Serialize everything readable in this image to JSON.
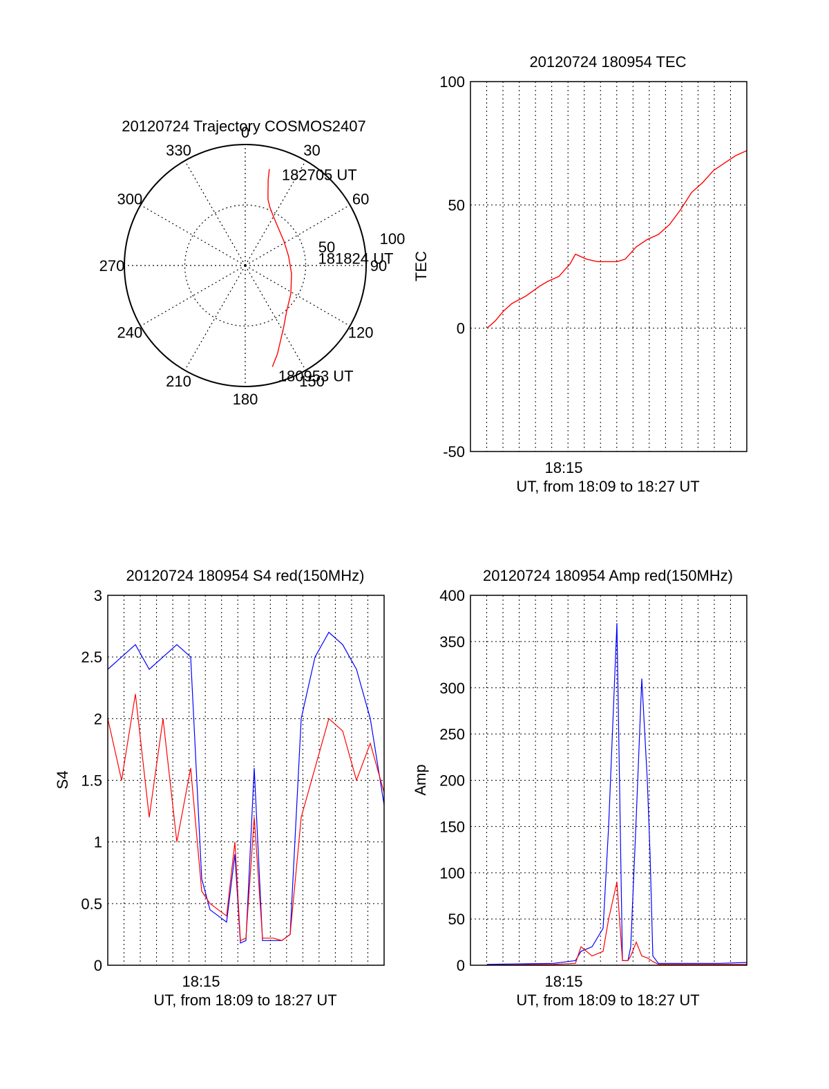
{
  "colors": {
    "red": "#ff0000",
    "blue": "#0000ff",
    "axis": "#000000",
    "grid": "#000000"
  },
  "chart_data": [
    {
      "type": "polar",
      "title": "20120724 Trajectory COSMOS2407",
      "azimuth_labels": [
        "0",
        "30",
        "60",
        "90",
        "120",
        "150",
        "180",
        "210",
        "240",
        "270",
        "300",
        "330"
      ],
      "radial_labels": [
        "50",
        "100"
      ],
      "elevation_range": [
        0,
        90
      ],
      "grid": true,
      "series": [
        {
          "color": "red",
          "points": [
            [
              165,
              12
            ],
            [
              160,
              20
            ],
            [
              155,
              28
            ],
            [
              148,
              36
            ],
            [
              138,
              44
            ],
            [
              122,
              50
            ],
            [
              100,
              55
            ],
            [
              78,
              57
            ],
            [
              58,
              56
            ],
            [
              42,
              53
            ],
            [
              30,
              48
            ],
            [
              23,
              43
            ],
            [
              19,
              38
            ],
            [
              17,
              32
            ],
            [
              15,
              24
            ],
            [
              14,
              16
            ]
          ]
        }
      ],
      "annotations": [
        {
          "text": "182705 UT",
          "az": 20,
          "el": 18
        },
        {
          "text": "181824 UT",
          "az": 84,
          "el": 38
        },
        {
          "text": "180953 UT",
          "az": 165,
          "el": 5
        }
      ]
    },
    {
      "type": "line",
      "title": "20120724 180954 TEC",
      "ylabel": "TEC",
      "xlabel": "UT, from 18:09 to 18:27 UT",
      "xtick_label": "18:15",
      "ylim": [
        -50,
        100
      ],
      "yticks": [
        "100",
        "50",
        "0",
        "-50"
      ],
      "grid": true,
      "series": [
        {
          "color": "red",
          "x": [
            0.06,
            0.09,
            0.12,
            0.15,
            0.2,
            0.25,
            0.28,
            0.32,
            0.36,
            0.38,
            0.42,
            0.46,
            0.5,
            0.53,
            0.56,
            0.6,
            0.64,
            0.68,
            0.72,
            0.76,
            0.8,
            0.84,
            0.88,
            0.92,
            0.96,
            1.0
          ],
          "y": [
            0,
            3,
            7,
            10,
            13,
            17,
            19,
            21,
            26,
            30,
            28,
            27,
            27,
            27,
            28,
            33,
            36,
            38,
            42,
            48,
            55,
            59,
            64,
            67,
            70,
            72
          ]
        }
      ]
    },
    {
      "type": "line",
      "title": "20120724 180954 S4 red(150MHz)",
      "ylabel": "S4",
      "xlabel": "UT, from 18:09 to 18:27 UT",
      "xtick_label": "18:15",
      "ylim": [
        0,
        3
      ],
      "yticks": [
        "3",
        "2.5",
        "2",
        "1.5",
        "1",
        "0.5",
        "0"
      ],
      "grid": true,
      "series": [
        {
          "color": "blue",
          "x": [
            0.0,
            0.05,
            0.1,
            0.15,
            0.2,
            0.25,
            0.3,
            0.34,
            0.37,
            0.4,
            0.43,
            0.46,
            0.48,
            0.5,
            0.53,
            0.56,
            0.6,
            0.63,
            0.66,
            0.7,
            0.75,
            0.8,
            0.85,
            0.9,
            0.95,
            1.0
          ],
          "y": [
            2.4,
            2.5,
            2.6,
            2.4,
            2.5,
            2.6,
            2.5,
            0.7,
            0.45,
            0.4,
            0.35,
            0.9,
            0.18,
            0.2,
            1.6,
            0.2,
            0.2,
            0.2,
            0.25,
            2.0,
            2.5,
            2.7,
            2.6,
            2.4,
            2.0,
            1.3
          ]
        },
        {
          "color": "red",
          "x": [
            0.0,
            0.05,
            0.1,
            0.15,
            0.2,
            0.25,
            0.3,
            0.34,
            0.37,
            0.4,
            0.43,
            0.46,
            0.48,
            0.5,
            0.53,
            0.56,
            0.6,
            0.63,
            0.66,
            0.7,
            0.75,
            0.8,
            0.85,
            0.9,
            0.95,
            1.0
          ],
          "y": [
            2.0,
            1.5,
            2.2,
            1.2,
            2.0,
            1.0,
            1.6,
            0.6,
            0.5,
            0.45,
            0.4,
            1.0,
            0.2,
            0.22,
            1.2,
            0.22,
            0.22,
            0.2,
            0.25,
            1.2,
            1.6,
            2.0,
            1.9,
            1.5,
            1.8,
            1.4
          ]
        }
      ]
    },
    {
      "type": "line",
      "title": "20120724 180954 Amp red(150MHz)",
      "ylabel": "Amp",
      "xlabel": "UT, from 18:09 to 18:27 UT",
      "xtick_label": "18:15",
      "ylim": [
        0,
        400
      ],
      "yticks": [
        "400",
        "350",
        "300",
        "250",
        "200",
        "150",
        "100",
        "50",
        "0"
      ],
      "grid": true,
      "series": [
        {
          "color": "blue",
          "x": [
            0.06,
            0.3,
            0.38,
            0.4,
            0.44,
            0.48,
            0.5,
            0.53,
            0.55,
            0.57,
            0.58,
            0.6,
            0.62,
            0.64,
            0.65,
            0.66,
            0.68,
            0.7,
            0.8,
            0.9,
            1.0
          ],
          "y": [
            1,
            2,
            5,
            15,
            20,
            40,
            150,
            370,
            5,
            5,
            20,
            160,
            310,
            200,
            120,
            10,
            2,
            2,
            2,
            2,
            3
          ]
        },
        {
          "color": "red",
          "x": [
            0.06,
            0.3,
            0.38,
            0.4,
            0.44,
            0.48,
            0.5,
            0.53,
            0.55,
            0.57,
            0.58,
            0.6,
            0.62,
            0.64,
            0.65,
            0.66,
            0.68,
            0.7,
            0.8,
            0.9,
            1.0
          ],
          "y": [
            0,
            1,
            2,
            20,
            10,
            15,
            50,
            90,
            5,
            5,
            10,
            25,
            10,
            8,
            6,
            4,
            1,
            1,
            1,
            1,
            1
          ]
        }
      ]
    }
  ]
}
